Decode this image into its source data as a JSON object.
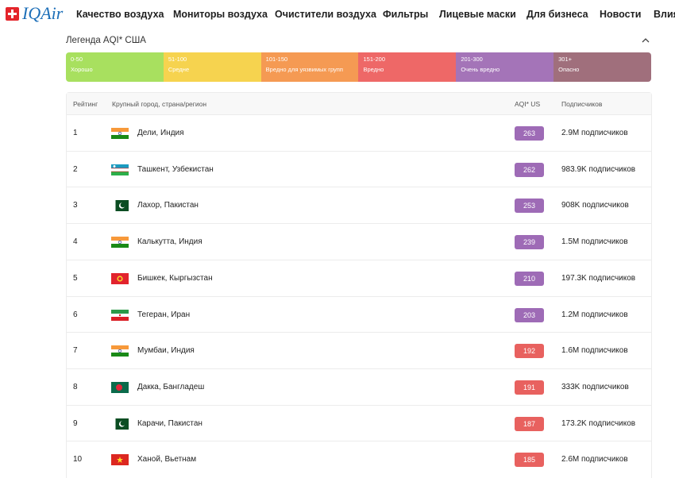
{
  "nav": {
    "logo": "IQAir",
    "items": [
      "Качество воздуха",
      "Мониторы воздуха",
      "Очистители воздуха",
      "Фильтры",
      "Лицевые маски",
      "Для бизнеса",
      "Новости",
      "Влия"
    ]
  },
  "legend": {
    "title": "Легенда AQI* США",
    "levels": [
      {
        "range": "0-50",
        "label": "Хорошо",
        "color": "#a8e05f"
      },
      {
        "range": "51-100",
        "label": "Средне",
        "color": "#f6d34f"
      },
      {
        "range": "101-150",
        "label": "Вредно для уязвимых групп",
        "color": "#f59a53"
      },
      {
        "range": "151-200",
        "label": "Вредно",
        "color": "#ee6867"
      },
      {
        "range": "201-300",
        "label": "Очень вредно",
        "color": "#a474b8"
      },
      {
        "range": "301+",
        "label": "Опасно",
        "color": "#a06f7c"
      }
    ]
  },
  "table": {
    "headers": [
      "Рейтинг",
      "Крупный город, страна/регион",
      "AQI* US",
      "Подписчиков"
    ],
    "rows": [
      {
        "rank": 1,
        "city": "Дели, Индия",
        "aqi": 263,
        "aqi_color": "#9e6bb6",
        "subscribers": "2.9M подписчиков"
      },
      {
        "rank": 2,
        "city": "Ташкент, Узбекистан",
        "aqi": 262,
        "aqi_color": "#9e6bb6",
        "subscribers": "983.9K подписчиков"
      },
      {
        "rank": 3,
        "city": "Лахор, Пакистан",
        "aqi": 253,
        "aqi_color": "#9e6bb6",
        "subscribers": "908K подписчиков"
      },
      {
        "rank": 4,
        "city": "Калькутта, Индия",
        "aqi": 239,
        "aqi_color": "#9e6bb6",
        "subscribers": "1.5M подписчиков"
      },
      {
        "rank": 5,
        "city": "Бишкек, Кыргызстан",
        "aqi": 210,
        "aqi_color": "#9e6bb6",
        "subscribers": "197.3K подписчиков"
      },
      {
        "rank": 6,
        "city": "Тегеран, Иран",
        "aqi": 203,
        "aqi_color": "#9e6bb6",
        "subscribers": "1.2M подписчиков"
      },
      {
        "rank": 7,
        "city": "Мумбаи, Индия",
        "aqi": 192,
        "aqi_color": "#e8615f",
        "subscribers": "1.6M подписчиков"
      },
      {
        "rank": 8,
        "city": "Дакка, Бангладеш",
        "aqi": 191,
        "aqi_color": "#e8615f",
        "subscribers": "333K подписчиков"
      },
      {
        "rank": 9,
        "city": "Карачи, Пакистан",
        "aqi": 187,
        "aqi_color": "#e8615f",
        "subscribers": "173.2K подписчиков"
      },
      {
        "rank": 10,
        "city": "Ханой, Вьетнам",
        "aqi": 185,
        "aqi_color": "#e8615f",
        "subscribers": "2.6M подписчиков"
      }
    ]
  }
}
